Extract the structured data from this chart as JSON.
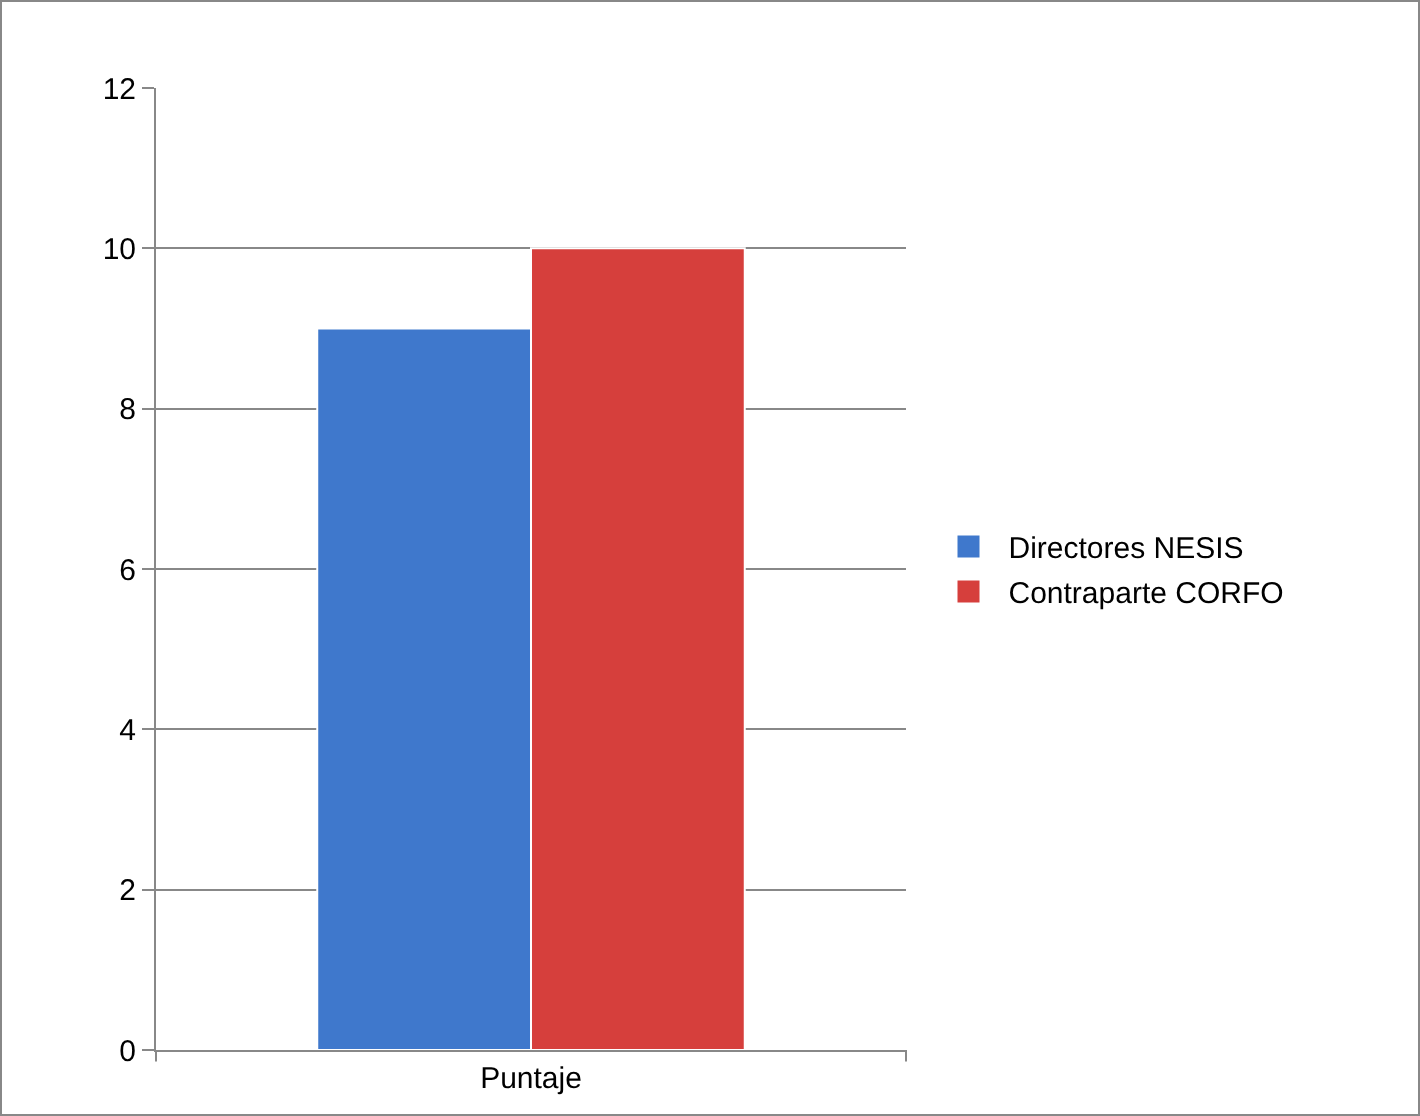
{
  "chart_data": {
    "type": "bar",
    "categories": [
      "Puntaje"
    ],
    "series": [
      {
        "name": "Directores NESIS",
        "color": "#3f78cc",
        "values": [
          9
        ]
      },
      {
        "name": "Contraparte CORFO",
        "color": "#d63f3c",
        "values": [
          10
        ]
      }
    ],
    "ylim": [
      0,
      12
    ],
    "yticks": [
      0,
      2,
      4,
      6,
      8,
      10,
      12
    ],
    "grid": "y",
    "legend": "right"
  }
}
